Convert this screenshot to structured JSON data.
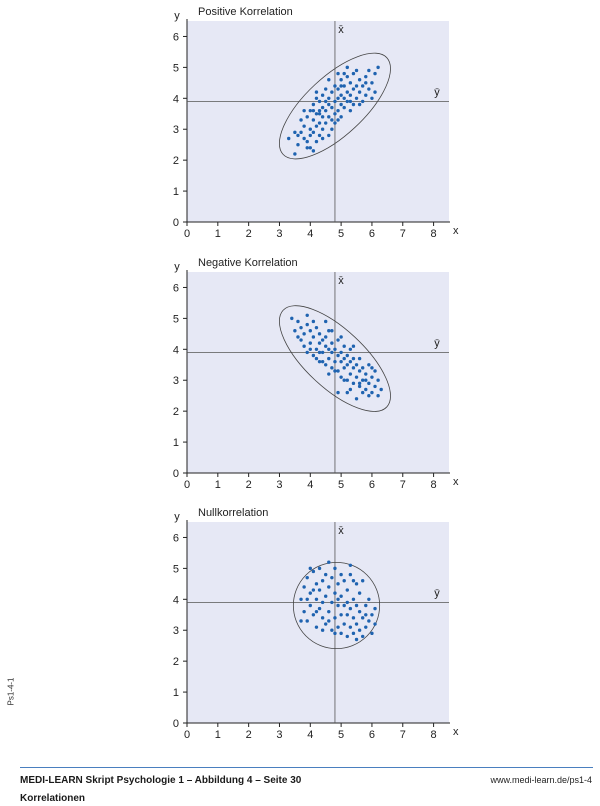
{
  "chart_data": [
    {
      "type": "scatter",
      "title": "Positive Korrelation",
      "xlabel": "x",
      "ylabel": "y",
      "xlim": [
        0,
        8.5
      ],
      "ylim": [
        0,
        6.5
      ],
      "xticks": [
        "0",
        "1",
        "2",
        "3",
        "4",
        "5",
        "6",
        "7",
        "8"
      ],
      "yticks": [
        "0",
        "1",
        "2",
        "3",
        "4",
        "5",
        "6"
      ],
      "mean_x": 4.8,
      "mean_y": 3.9,
      "mean_x_label": "x̄",
      "mean_y_label": "ȳ",
      "ellipse": {
        "cx": 4.8,
        "cy": 3.75,
        "rx": 2.3,
        "ry": 0.95,
        "angle_deg": 43
      },
      "points": [
        [
          3.3,
          2.7
        ],
        [
          3.5,
          2.2
        ],
        [
          3.6,
          2.5
        ],
        [
          3.7,
          2.9
        ],
        [
          3.7,
          3.3
        ],
        [
          3.8,
          2.7
        ],
        [
          3.8,
          3.1
        ],
        [
          3.9,
          2.4
        ],
        [
          3.9,
          3.4
        ],
        [
          4.0,
          2.8
        ],
        [
          4.0,
          3.0
        ],
        [
          4.0,
          3.6
        ],
        [
          4.1,
          2.3
        ],
        [
          4.1,
          2.9
        ],
        [
          4.1,
          3.3
        ],
        [
          4.1,
          3.8
        ],
        [
          4.2,
          2.6
        ],
        [
          4.2,
          3.1
        ],
        [
          4.2,
          3.5
        ],
        [
          4.2,
          4.0
        ],
        [
          4.3,
          2.8
        ],
        [
          4.3,
          3.2
        ],
        [
          4.3,
          3.6
        ],
        [
          4.3,
          3.9
        ],
        [
          4.4,
          3.0
        ],
        [
          4.4,
          3.4
        ],
        [
          4.4,
          3.7
        ],
        [
          4.4,
          4.1
        ],
        [
          4.5,
          3.2
        ],
        [
          4.5,
          3.6
        ],
        [
          4.5,
          3.9
        ],
        [
          4.5,
          4.3
        ],
        [
          4.6,
          2.8
        ],
        [
          4.6,
          3.4
        ],
        [
          4.6,
          3.8
        ],
        [
          4.6,
          4.0
        ],
        [
          4.7,
          3.3
        ],
        [
          4.7,
          3.7
        ],
        [
          4.7,
          4.2
        ],
        [
          4.8,
          3.5
        ],
        [
          4.8,
          3.9
        ],
        [
          4.8,
          4.4
        ],
        [
          4.9,
          3.6
        ],
        [
          4.9,
          4.0
        ],
        [
          4.9,
          4.3
        ],
        [
          5.0,
          3.4
        ],
        [
          5.0,
          3.8
        ],
        [
          5.0,
          4.1
        ],
        [
          5.0,
          4.6
        ],
        [
          5.1,
          3.7
        ],
        [
          5.1,
          4.0
        ],
        [
          5.1,
          4.4
        ],
        [
          5.2,
          3.9
        ],
        [
          5.2,
          4.2
        ],
        [
          5.2,
          4.7
        ],
        [
          5.3,
          3.6
        ],
        [
          5.3,
          4.1
        ],
        [
          5.3,
          4.5
        ],
        [
          5.4,
          3.8
        ],
        [
          5.4,
          4.3
        ],
        [
          5.4,
          4.8
        ],
        [
          5.5,
          4.0
        ],
        [
          5.5,
          4.4
        ],
        [
          5.6,
          4.2
        ],
        [
          5.6,
          4.6
        ],
        [
          5.7,
          3.9
        ],
        [
          5.7,
          4.4
        ],
        [
          5.8,
          4.1
        ],
        [
          5.8,
          4.7
        ],
        [
          5.9,
          4.3
        ],
        [
          5.9,
          4.9
        ],
        [
          6.0,
          4.5
        ],
        [
          6.1,
          4.2
        ],
        [
          6.1,
          4.8
        ],
        [
          6.2,
          5.0
        ],
        [
          5.2,
          5.0
        ],
        [
          4.9,
          4.8
        ],
        [
          3.6,
          2.8
        ],
        [
          3.9,
          2.6
        ],
        [
          4.4,
          2.7
        ],
        [
          4.1,
          3.6
        ],
        [
          4.8,
          3.2
        ],
        [
          5.3,
          3.9
        ],
        [
          5.6,
          3.8
        ],
        [
          4.6,
          4.6
        ],
        [
          5.0,
          4.4
        ],
        [
          5.5,
          4.9
        ],
        [
          4.3,
          3.5
        ],
        [
          3.8,
          3.6
        ],
        [
          4.7,
          3.0
        ],
        [
          4.0,
          2.4
        ],
        [
          5.8,
          4.5
        ],
        [
          6.0,
          4.0
        ],
        [
          4.9,
          3.3
        ],
        [
          5.1,
          4.8
        ],
        [
          3.5,
          2.9
        ],
        [
          4.2,
          4.2
        ]
      ]
    },
    {
      "type": "scatter",
      "title": "Negative Korrelation",
      "xlabel": "x",
      "ylabel": "y",
      "xlim": [
        0,
        8.5
      ],
      "ylim": [
        0,
        6.5
      ],
      "xticks": [
        "0",
        "1",
        "2",
        "3",
        "4",
        "5",
        "6",
        "7",
        "8"
      ],
      "yticks": [
        "0",
        "1",
        "2",
        "3",
        "4",
        "5",
        "6"
      ],
      "mean_x": 4.8,
      "mean_y": 3.9,
      "mean_x_label": "x̄",
      "mean_y_label": "ȳ",
      "ellipse": {
        "cx": 4.8,
        "cy": 3.7,
        "rx": 2.3,
        "ry": 0.95,
        "angle_deg": -43
      },
      "points": [
        [
          3.4,
          5.0
        ],
        [
          3.5,
          4.6
        ],
        [
          3.6,
          4.9
        ],
        [
          3.7,
          4.3
        ],
        [
          3.7,
          4.7
        ],
        [
          3.8,
          4.1
        ],
        [
          3.8,
          4.5
        ],
        [
          3.9,
          3.9
        ],
        [
          3.9,
          4.8
        ],
        [
          4.0,
          4.2
        ],
        [
          4.0,
          4.6
        ],
        [
          4.1,
          3.8
        ],
        [
          4.1,
          4.4
        ],
        [
          4.2,
          4.0
        ],
        [
          4.2,
          4.7
        ],
        [
          4.3,
          3.6
        ],
        [
          4.3,
          4.2
        ],
        [
          4.3,
          4.5
        ],
        [
          4.4,
          3.9
        ],
        [
          4.4,
          4.3
        ],
        [
          4.5,
          3.5
        ],
        [
          4.5,
          4.1
        ],
        [
          4.5,
          4.4
        ],
        [
          4.6,
          3.7
        ],
        [
          4.6,
          4.0
        ],
        [
          4.6,
          4.6
        ],
        [
          4.7,
          3.4
        ],
        [
          4.7,
          3.9
        ],
        [
          4.7,
          4.2
        ],
        [
          4.8,
          3.6
        ],
        [
          4.8,
          4.0
        ],
        [
          4.9,
          3.3
        ],
        [
          4.9,
          3.8
        ],
        [
          4.9,
          4.3
        ],
        [
          5.0,
          3.1
        ],
        [
          5.0,
          3.6
        ],
        [
          5.0,
          3.9
        ],
        [
          5.1,
          3.4
        ],
        [
          5.1,
          3.7
        ],
        [
          5.1,
          4.1
        ],
        [
          5.2,
          3.0
        ],
        [
          5.2,
          3.5
        ],
        [
          5.2,
          3.8
        ],
        [
          5.3,
          3.2
        ],
        [
          5.3,
          3.6
        ],
        [
          5.3,
          4.0
        ],
        [
          5.4,
          2.9
        ],
        [
          5.4,
          3.4
        ],
        [
          5.4,
          3.7
        ],
        [
          5.5,
          3.1
        ],
        [
          5.5,
          3.5
        ],
        [
          5.6,
          2.8
        ],
        [
          5.6,
          3.3
        ],
        [
          5.6,
          3.7
        ],
        [
          5.7,
          3.0
        ],
        [
          5.7,
          3.4
        ],
        [
          5.8,
          2.7
        ],
        [
          5.8,
          3.2
        ],
        [
          5.9,
          2.9
        ],
        [
          5.9,
          3.5
        ],
        [
          6.0,
          2.6
        ],
        [
          6.0,
          3.1
        ],
        [
          6.1,
          2.8
        ],
        [
          6.1,
          3.3
        ],
        [
          6.2,
          2.5
        ],
        [
          6.2,
          3.0
        ],
        [
          6.3,
          2.7
        ],
        [
          4.9,
          2.6
        ],
        [
          5.5,
          2.4
        ],
        [
          4.5,
          4.9
        ],
        [
          3.9,
          5.1
        ],
        [
          4.4,
          3.6
        ],
        [
          5.1,
          3.0
        ],
        [
          5.7,
          2.6
        ],
        [
          4.0,
          4.0
        ],
        [
          4.7,
          4.6
        ],
        [
          5.3,
          2.7
        ],
        [
          4.2,
          3.7
        ],
        [
          5.9,
          2.5
        ],
        [
          5.0,
          4.4
        ],
        [
          4.6,
          3.2
        ],
        [
          5.4,
          4.1
        ],
        [
          3.6,
          4.4
        ],
        [
          6.0,
          3.4
        ],
        [
          4.8,
          3.3
        ],
        [
          5.2,
          2.6
        ],
        [
          4.1,
          4.9
        ],
        [
          5.6,
          2.9
        ],
        [
          4.3,
          3.9
        ],
        [
          5.8,
          3.0
        ]
      ]
    },
    {
      "type": "scatter",
      "title": "Nullkorrelation",
      "xlabel": "x",
      "ylabel": "y",
      "xlim": [
        0,
        8.5
      ],
      "ylim": [
        0,
        6.5
      ],
      "xticks": [
        "0",
        "1",
        "2",
        "3",
        "4",
        "5",
        "6",
        "7",
        "8"
      ],
      "yticks": [
        "0",
        "1",
        "2",
        "3",
        "4",
        "5",
        "6"
      ],
      "mean_x": 4.8,
      "mean_y": 3.9,
      "mean_x_label": "x̄",
      "mean_y_label": "ȳ",
      "ellipse": {
        "cx": 4.85,
        "cy": 3.8,
        "rx": 1.4,
        "ry": 1.4,
        "angle_deg": 0
      },
      "points": [
        [
          3.7,
          4.0
        ],
        [
          3.8,
          3.6
        ],
        [
          3.8,
          4.4
        ],
        [
          3.9,
          3.3
        ],
        [
          3.9,
          4.7
        ],
        [
          4.0,
          3.8
        ],
        [
          4.0,
          4.2
        ],
        [
          4.1,
          3.5
        ],
        [
          4.1,
          4.9
        ],
        [
          4.2,
          3.1
        ],
        [
          4.2,
          4.0
        ],
        [
          4.2,
          4.5
        ],
        [
          4.3,
          3.7
        ],
        [
          4.3,
          4.3
        ],
        [
          4.3,
          5.0
        ],
        [
          4.4,
          3.4
        ],
        [
          4.4,
          3.9
        ],
        [
          4.4,
          4.6
        ],
        [
          4.5,
          3.2
        ],
        [
          4.5,
          4.1
        ],
        [
          4.5,
          4.8
        ],
        [
          4.6,
          3.6
        ],
        [
          4.6,
          4.4
        ],
        [
          4.7,
          3.0
        ],
        [
          4.7,
          3.9
        ],
        [
          4.7,
          4.7
        ],
        [
          4.8,
          3.4
        ],
        [
          4.8,
          4.2
        ],
        [
          4.8,
          5.0
        ],
        [
          4.9,
          3.1
        ],
        [
          4.9,
          3.8
        ],
        [
          4.9,
          4.5
        ],
        [
          5.0,
          2.9
        ],
        [
          5.0,
          3.5
        ],
        [
          5.0,
          4.1
        ],
        [
          5.1,
          3.2
        ],
        [
          5.1,
          3.8
        ],
        [
          5.1,
          4.6
        ],
        [
          5.2,
          2.8
        ],
        [
          5.2,
          3.5
        ],
        [
          5.2,
          4.3
        ],
        [
          5.3,
          3.1
        ],
        [
          5.3,
          3.7
        ],
        [
          5.3,
          4.8
        ],
        [
          5.4,
          2.9
        ],
        [
          5.4,
          3.4
        ],
        [
          5.4,
          4.0
        ],
        [
          5.5,
          3.2
        ],
        [
          5.5,
          3.8
        ],
        [
          5.5,
          4.5
        ],
        [
          5.6,
          3.0
        ],
        [
          5.6,
          3.6
        ],
        [
          5.6,
          4.2
        ],
        [
          5.7,
          2.8
        ],
        [
          5.7,
          3.4
        ],
        [
          5.8,
          3.1
        ],
        [
          5.8,
          3.8
        ],
        [
          5.9,
          3.3
        ],
        [
          5.9,
          4.0
        ],
        [
          6.0,
          3.5
        ],
        [
          6.0,
          2.9
        ],
        [
          6.1,
          3.2
        ],
        [
          3.7,
          3.3
        ],
        [
          4.0,
          5.0
        ],
        [
          4.6,
          5.2
        ],
        [
          5.3,
          5.1
        ],
        [
          5.7,
          4.6
        ],
        [
          6.1,
          3.7
        ],
        [
          3.9,
          4.0
        ],
        [
          4.4,
          3.0
        ],
        [
          5.0,
          4.8
        ],
        [
          5.5,
          2.7
        ],
        [
          4.2,
          3.6
        ],
        [
          4.9,
          4.0
        ],
        [
          5.2,
          3.9
        ],
        [
          4.6,
          3.3
        ],
        [
          5.8,
          3.5
        ],
        [
          4.1,
          4.3
        ],
        [
          4.8,
          2.9
        ],
        [
          5.4,
          4.6
        ]
      ]
    }
  ],
  "side_label": "Ps1-4-1",
  "footer": {
    "title": "MEDI-LEARN Skript Psychologie 1 – Abbildung 4 – Seite 30",
    "subtitle": "Korrelationen",
    "url": "www.medi-learn.de/ps1-4"
  },
  "colors": {
    "plot_bg": "#e6e8f5",
    "dot": "#1f63b0",
    "axis": "#222222",
    "rule": "#4a7fbf"
  }
}
